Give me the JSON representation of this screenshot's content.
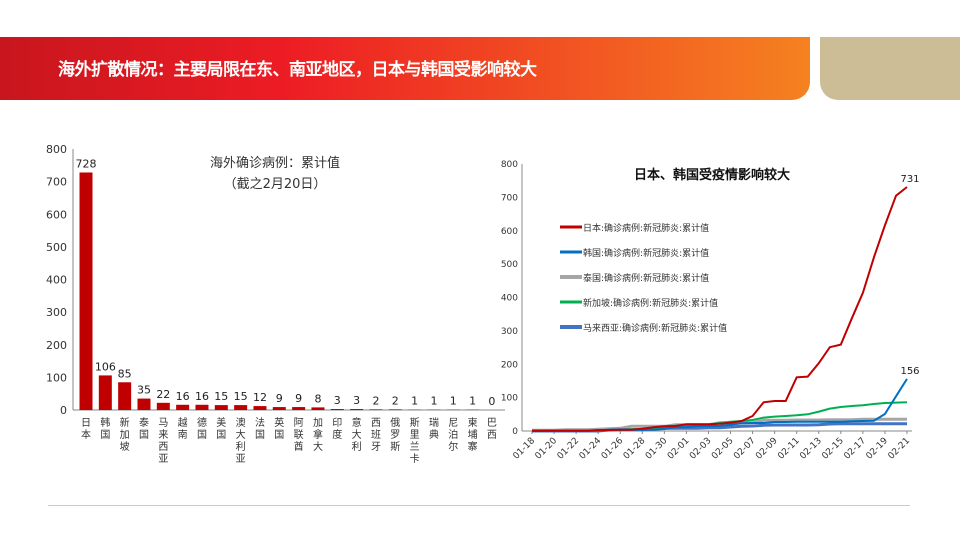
{
  "header": {
    "title": "海外扩散情况：主要局限在东、南亚地区，日本与韩国受影响较大",
    "color_start": "#c8161e",
    "color_end": "#f58220",
    "accent": "#cdbd97"
  },
  "chart_data": [
    {
      "type": "bar",
      "title": "海外确诊病例：累计值",
      "subtitle": "（截之2月20日）",
      "categories": [
        "日本",
        "韩国",
        "新加坡",
        "泰国",
        "马来西亚",
        "越南",
        "德国",
        "美国",
        "澳大利亚",
        "法国",
        "英国",
        "阿联酋",
        "加拿大",
        "印度",
        "意大利",
        "西班牙",
        "俄罗斯",
        "斯里兰卡",
        "瑞典",
        "尼泊尔",
        "柬埔寨",
        "巴西"
      ],
      "values": [
        728,
        106,
        85,
        35,
        22,
        16,
        16,
        15,
        15,
        12,
        9,
        9,
        8,
        3,
        3,
        2,
        2,
        1,
        1,
        1,
        1,
        0
      ],
      "ylim": [
        0,
        800
      ],
      "yticks": [
        0,
        100,
        200,
        300,
        400,
        500,
        600,
        700,
        800
      ],
      "color": "#c00000",
      "grid": false
    },
    {
      "type": "line",
      "title": "日本、韩国受疫情影响较大",
      "x": [
        "01-18",
        "01-19",
        "01-20",
        "01-21",
        "01-22",
        "01-23",
        "01-24",
        "01-25",
        "01-26",
        "01-27",
        "01-28",
        "01-29",
        "01-30",
        "01-31",
        "02-01",
        "02-02",
        "02-03",
        "02-04",
        "02-05",
        "02-06",
        "02-07",
        "02-08",
        "02-09",
        "02-10",
        "02-11",
        "02-12",
        "02-13",
        "02-14",
        "02-15",
        "02-16",
        "02-17",
        "02-18",
        "02-19",
        "02-20",
        "02-21"
      ],
      "xticks": [
        "01-18",
        "01-20",
        "01-22",
        "01-24",
        "01-26",
        "01-28",
        "01-30",
        "02-01",
        "02-03",
        "02-05",
        "02-07",
        "02-09",
        "02-11",
        "02-13",
        "02-15",
        "02-17",
        "02-19",
        "02-21"
      ],
      "ylim": [
        0,
        800
      ],
      "yticks": [
        0,
        100,
        200,
        300,
        400,
        500,
        600,
        700,
        800
      ],
      "grid": false,
      "legend": "top-left",
      "series": [
        {
          "name": "日本:确诊病例:新冠肺炎:累计值",
          "color": "#c00000",
          "end_label": "731",
          "values": [
            1,
            1,
            1,
            1,
            1,
            1,
            2,
            3,
            4,
            4,
            7,
            11,
            14,
            15,
            20,
            20,
            20,
            22,
            25,
            30,
            45,
            86,
            90,
            90,
            161,
            163,
            203,
            251,
            259,
            338,
            414,
            520,
            616,
            705,
            731
          ]
        },
        {
          "name": "韩国:确诊病例:新冠肺炎:累计值",
          "color": "#0070c0",
          "end_label": "156",
          "values": [
            0,
            0,
            1,
            1,
            1,
            1,
            2,
            2,
            3,
            4,
            4,
            4,
            6,
            11,
            12,
            15,
            15,
            16,
            19,
            23,
            24,
            24,
            27,
            27,
            28,
            28,
            28,
            28,
            28,
            29,
            30,
            31,
            51,
            104,
            156
          ]
        },
        {
          "name": "泰国:确诊病例:新冠肺炎:累计值",
          "color": "#a6a6a6",
          "values": [
            2,
            2,
            2,
            4,
            4,
            4,
            5,
            7,
            8,
            14,
            14,
            14,
            14,
            19,
            19,
            19,
            19,
            25,
            25,
            25,
            25,
            32,
            32,
            32,
            33,
            33,
            33,
            34,
            34,
            34,
            35,
            35,
            35,
            35,
            35
          ]
        },
        {
          "name": "新加坡:确诊病例:新冠肺炎:累计值",
          "color": "#00b050",
          "values": [
            0,
            0,
            0,
            0,
            0,
            1,
            3,
            3,
            4,
            5,
            7,
            10,
            13,
            16,
            18,
            18,
            18,
            24,
            28,
            30,
            33,
            40,
            43,
            45,
            47,
            50,
            58,
            67,
            72,
            75,
            77,
            81,
            84,
            85,
            86
          ]
        },
        {
          "name": "马来西亚:确诊病例:新冠肺炎:累计值",
          "color": "#4472c4",
          "values": [
            0,
            0,
            0,
            0,
            0,
            0,
            0,
            3,
            4,
            4,
            4,
            7,
            8,
            8,
            8,
            8,
            10,
            10,
            12,
            14,
            15,
            17,
            18,
            18,
            18,
            18,
            19,
            21,
            22,
            22,
            22,
            22,
            22,
            22,
            22
          ]
        }
      ]
    }
  ]
}
